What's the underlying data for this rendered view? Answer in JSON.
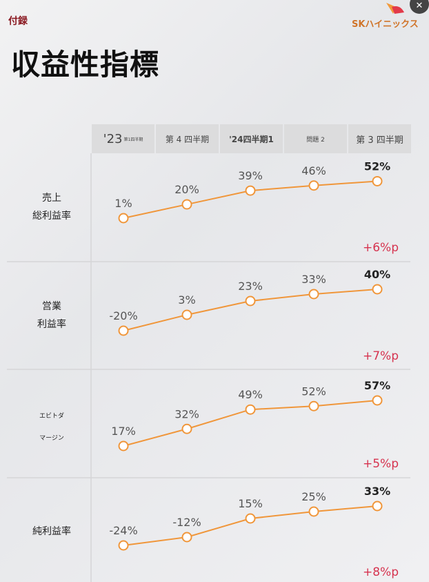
{
  "header": {
    "appendix": "付録",
    "logo_text": "SKハイニックス",
    "close_icon": "close-icon",
    "title": "収益性指標"
  },
  "colors": {
    "line": "#f0963a",
    "change": "#d6334f",
    "appendix": "#8b1a22",
    "logo": "#d0752a"
  },
  "chart_data": {
    "type": "line",
    "categories": [
      {
        "main": "'23",
        "sub": "第1四半期"
      },
      {
        "main": "第 4 四半期"
      },
      {
        "main": "'24四半期1"
      },
      {
        "main": "問題 2"
      },
      {
        "main": "第 3 四半期"
      }
    ],
    "series": [
      {
        "name": "売上\n総利益率",
        "label_lines": [
          "売上",
          "総利益率"
        ],
        "values": [
          1,
          20,
          39,
          46,
          52
        ],
        "labels": [
          "1%",
          "20%",
          "39%",
          "46%",
          "52%"
        ],
        "change": "+6%p"
      },
      {
        "name": "営業\n利益率",
        "label_lines": [
          "営業",
          "利益率"
        ],
        "values": [
          -20,
          3,
          23,
          33,
          40
        ],
        "labels": [
          "-20%",
          "3%",
          "23%",
          "33%",
          "40%"
        ],
        "change": "+7%p"
      },
      {
        "name": "エビトダ\nマージン",
        "label_lines": [
          "エビトダ",
          "マージン"
        ],
        "values": [
          17,
          32,
          49,
          52,
          57
        ],
        "labels": [
          "17%",
          "32%",
          "49%",
          "52%",
          "57%"
        ],
        "change": "+5%p"
      },
      {
        "name": "純利益率",
        "label_lines": [
          "純利益率"
        ],
        "values": [
          -24,
          -12,
          15,
          25,
          33
        ],
        "labels": [
          "-24%",
          "-12%",
          "15%",
          "25%",
          "33%"
        ],
        "change": "+8%p"
      }
    ]
  }
}
